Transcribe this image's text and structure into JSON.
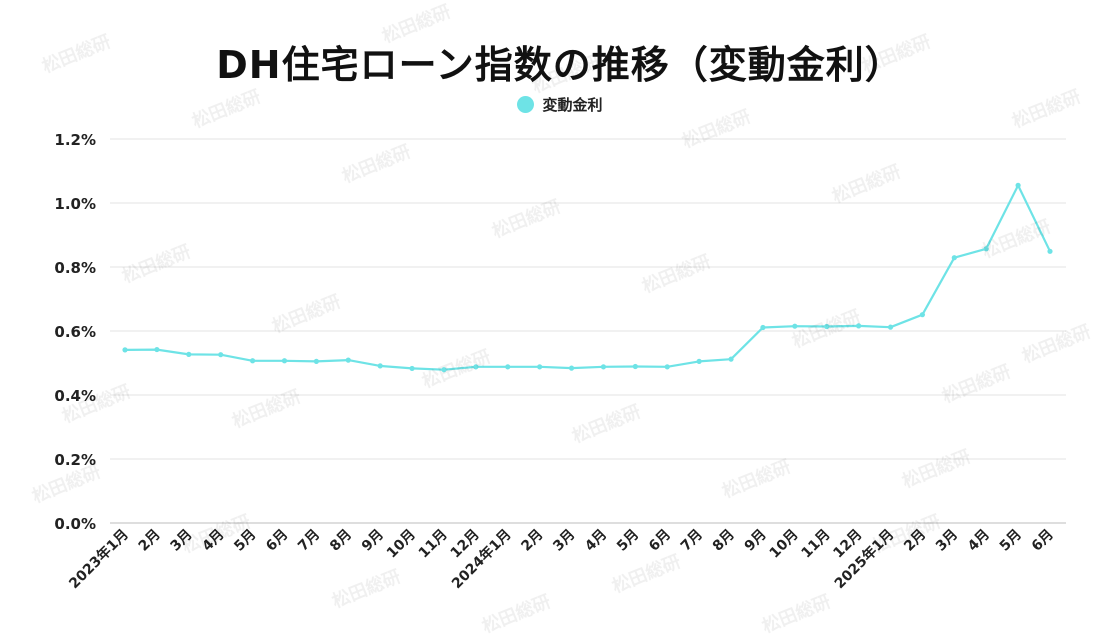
{
  "chart_data": {
    "type": "line",
    "title": "DH住宅ローン指数の推移（変動金利）",
    "xlabel": "",
    "ylabel": "",
    "ylim": [
      0,
      1.2
    ],
    "yticks": [
      "0.0%",
      "0.2%",
      "0.4%",
      "0.6%",
      "0.8%",
      "1.0%",
      "1.2%"
    ],
    "grid": true,
    "legend_position": "top-center",
    "line_color": "#6ee3e6",
    "categories": [
      "2023年1月",
      "2月",
      "3月",
      "4月",
      "5月",
      "6月",
      "7月",
      "8月",
      "9月",
      "10月",
      "11月",
      "12月",
      "2024年1月",
      "2月",
      "3月",
      "4月",
      "5月",
      "6月",
      "7月",
      "8月",
      "9月",
      "10月",
      "11月",
      "12月",
      "2025年1月",
      "2月",
      "3月",
      "4月",
      "5月",
      "6月"
    ],
    "series": [
      {
        "name": "変動金利",
        "values": [
          0.541,
          0.542,
          0.527,
          0.526,
          0.507,
          0.507,
          0.505,
          0.509,
          0.491,
          0.483,
          0.479,
          0.488,
          0.488,
          0.488,
          0.484,
          0.488,
          0.489,
          0.488,
          0.505,
          0.512,
          0.611,
          0.615,
          0.614,
          0.616,
          0.612,
          0.651,
          0.829,
          0.857,
          1.055,
          0.849
        ]
      }
    ]
  },
  "watermark": "松田総研"
}
